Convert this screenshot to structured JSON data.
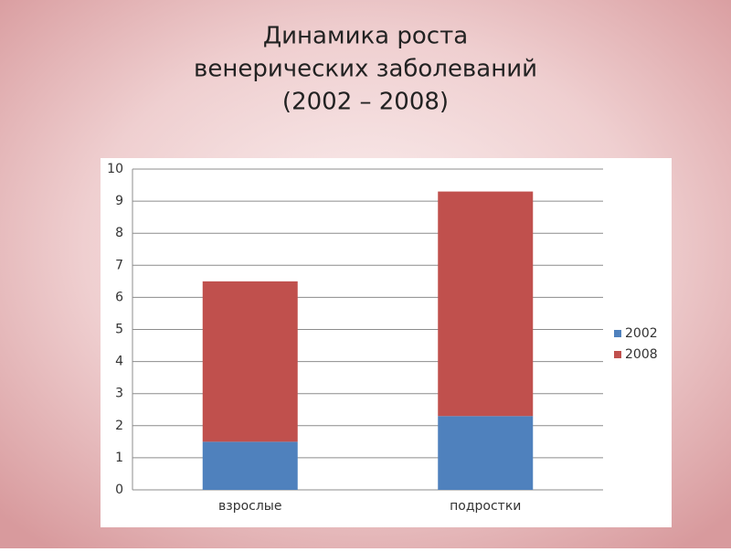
{
  "chart_data": {
    "type": "stacked_bar",
    "title": [
      "Динамика роста",
      "венерических заболеваний",
      "(2002 – 2008)"
    ],
    "categories": [
      "взрослые",
      "подростки"
    ],
    "series": [
      {
        "name": "2002",
        "color": "#4f81bd",
        "values": [
          1.5,
          2.3
        ]
      },
      {
        "name": "2008",
        "color": "#c0504d",
        "values": [
          5.0,
          7.0
        ]
      }
    ],
    "ylim": [
      0,
      10
    ],
    "yticks": [
      0,
      1,
      2,
      3,
      4,
      5,
      6,
      7,
      8,
      9,
      10
    ],
    "grid": true,
    "legend": "right"
  }
}
